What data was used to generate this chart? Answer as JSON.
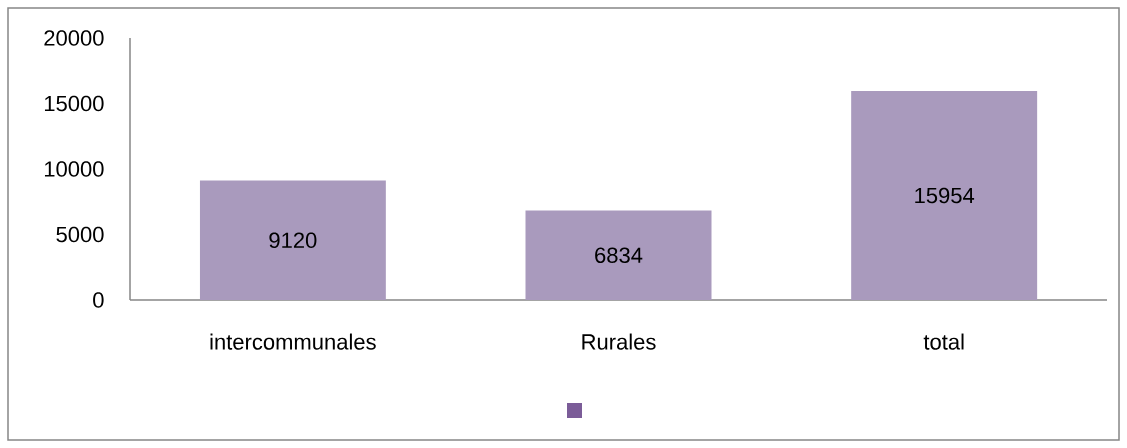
{
  "chart_data": {
    "type": "bar",
    "categories": [
      "intercommunales",
      "Rurales",
      "total"
    ],
    "values": [
      9120,
      6834,
      15954
    ],
    "color": "#a99abd",
    "ylim": [
      0,
      20000
    ],
    "yticks": [
      0,
      5000,
      10000,
      15000,
      20000
    ],
    "data_labels": true
  }
}
